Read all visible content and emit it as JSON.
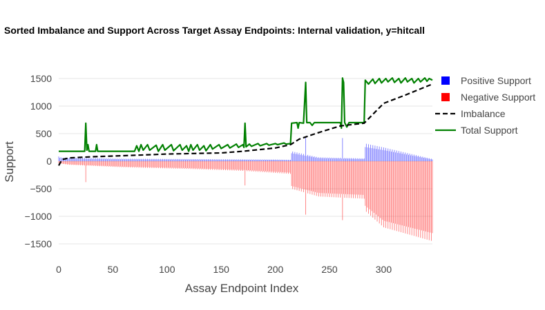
{
  "chart_data": {
    "type": "bar",
    "title": "Sorted Imbalance and Support Across Target Assay Endpoints: Internal validation, y=hitcall",
    "xlabel": "Assay Endpoint Index",
    "ylabel": "Support",
    "xlim": [
      0,
      345
    ],
    "ylim": [
      -1700,
      1700
    ],
    "x_ticks": [
      0,
      50,
      100,
      150,
      200,
      250,
      300
    ],
    "y_ticks": [
      -1500,
      -1000,
      -500,
      0,
      500,
      1000,
      1500
    ],
    "y_tick_labels": [
      "−1500",
      "−1000",
      "−500",
      "0",
      "500",
      "1000",
      "1500"
    ],
    "grid": "horizontal",
    "legend_position": "right",
    "n_points": 346,
    "series": [
      {
        "name": "Positive Support",
        "kind": "bar",
        "color": "#0000ff",
        "piecewise_linear": [
          [
            0,
            85
          ],
          [
            3,
            65
          ],
          [
            60,
            45
          ],
          [
            150,
            35
          ],
          [
            200,
            30
          ],
          [
            214,
            25
          ],
          [
            215,
            180
          ],
          [
            240,
            70
          ],
          [
            282,
            50
          ],
          [
            283,
            320
          ],
          [
            300,
            250
          ],
          [
            345,
            40
          ]
        ],
        "spikes": [
          [
            228,
            450
          ],
          [
            262,
            420
          ]
        ]
      },
      {
        "name": "Negative Support",
        "kind": "bar",
        "color": "#ff0000",
        "piecewise_linear": [
          [
            0,
            -40
          ],
          [
            10,
            -65
          ],
          [
            60,
            -110
          ],
          [
            120,
            -140
          ],
          [
            170,
            -175
          ],
          [
            214,
            -230
          ],
          [
            215,
            -500
          ],
          [
            240,
            -640
          ],
          [
            282,
            -680
          ],
          [
            283,
            -900
          ],
          [
            300,
            -1200
          ],
          [
            345,
            -1450
          ]
        ],
        "spikes": [
          [
            25,
            -380
          ],
          [
            172,
            -440
          ],
          [
            228,
            -970
          ],
          [
            262,
            -1070
          ]
        ]
      },
      {
        "name": "Imbalance",
        "kind": "line",
        "color": "#000000",
        "dash": "dashed",
        "points": [
          [
            0,
            -80
          ],
          [
            3,
            30
          ],
          [
            10,
            60
          ],
          [
            30,
            80
          ],
          [
            60,
            100
          ],
          [
            100,
            130
          ],
          [
            150,
            150
          ],
          [
            170,
            180
          ],
          [
            200,
            240
          ],
          [
            214,
            300
          ],
          [
            222,
            400
          ],
          [
            240,
            520
          ],
          [
            260,
            640
          ],
          [
            282,
            690
          ],
          [
            290,
            850
          ],
          [
            300,
            1050
          ],
          [
            320,
            1200
          ],
          [
            345,
            1400
          ]
        ]
      },
      {
        "name": "Total Support",
        "kind": "line",
        "color": "#008000",
        "points": [
          [
            0,
            180
          ],
          [
            24,
            180
          ],
          [
            25,
            690
          ],
          [
            26,
            200
          ],
          [
            27,
            300
          ],
          [
            28,
            180
          ],
          [
            34,
            180
          ],
          [
            35,
            300
          ],
          [
            36,
            180
          ],
          [
            70,
            180
          ],
          [
            72,
            280
          ],
          [
            74,
            180
          ],
          [
            76,
            300
          ],
          [
            78,
            200
          ],
          [
            82,
            300
          ],
          [
            84,
            200
          ],
          [
            90,
            290
          ],
          [
            92,
            180
          ],
          [
            96,
            300
          ],
          [
            98,
            200
          ],
          [
            104,
            300
          ],
          [
            106,
            190
          ],
          [
            112,
            300
          ],
          [
            114,
            200
          ],
          [
            118,
            280
          ],
          [
            120,
            180
          ],
          [
            122,
            300
          ],
          [
            124,
            200
          ],
          [
            128,
            300
          ],
          [
            130,
            200
          ],
          [
            134,
            280
          ],
          [
            136,
            190
          ],
          [
            140,
            300
          ],
          [
            142,
            220
          ],
          [
            148,
            300
          ],
          [
            150,
            230
          ],
          [
            156,
            300
          ],
          [
            158,
            240
          ],
          [
            164,
            310
          ],
          [
            166,
            250
          ],
          [
            170,
            300
          ],
          [
            171,
            250
          ],
          [
            172,
            690
          ],
          [
            173,
            260
          ],
          [
            176,
            310
          ],
          [
            178,
            270
          ],
          [
            184,
            320
          ],
          [
            186,
            280
          ],
          [
            192,
            320
          ],
          [
            194,
            290
          ],
          [
            200,
            320
          ],
          [
            202,
            300
          ],
          [
            208,
            330
          ],
          [
            210,
            310
          ],
          [
            214,
            320
          ],
          [
            215,
            690
          ],
          [
            220,
            700
          ],
          [
            221,
            600
          ],
          [
            222,
            700
          ],
          [
            226,
            690
          ],
          [
            228,
            1430
          ],
          [
            229,
            700
          ],
          [
            232,
            700
          ],
          [
            234,
            650
          ],
          [
            236,
            700
          ],
          [
            260,
            700
          ],
          [
            261,
            600
          ],
          [
            262,
            1510
          ],
          [
            263,
            1430
          ],
          [
            264,
            700
          ],
          [
            266,
            620
          ],
          [
            268,
            700
          ],
          [
            282,
            700
          ],
          [
            283,
            1470
          ],
          [
            286,
            1400
          ],
          [
            290,
            1490
          ],
          [
            292,
            1410
          ],
          [
            296,
            1500
          ],
          [
            298,
            1420
          ],
          [
            302,
            1500
          ],
          [
            304,
            1440
          ],
          [
            308,
            1510
          ],
          [
            310,
            1430
          ],
          [
            314,
            1500
          ],
          [
            316,
            1420
          ],
          [
            320,
            1510
          ],
          [
            322,
            1440
          ],
          [
            326,
            1500
          ],
          [
            328,
            1420
          ],
          [
            332,
            1500
          ],
          [
            334,
            1440
          ],
          [
            338,
            1510
          ],
          [
            340,
            1450
          ],
          [
            342,
            1500
          ],
          [
            345,
            1470
          ]
        ]
      }
    ]
  }
}
